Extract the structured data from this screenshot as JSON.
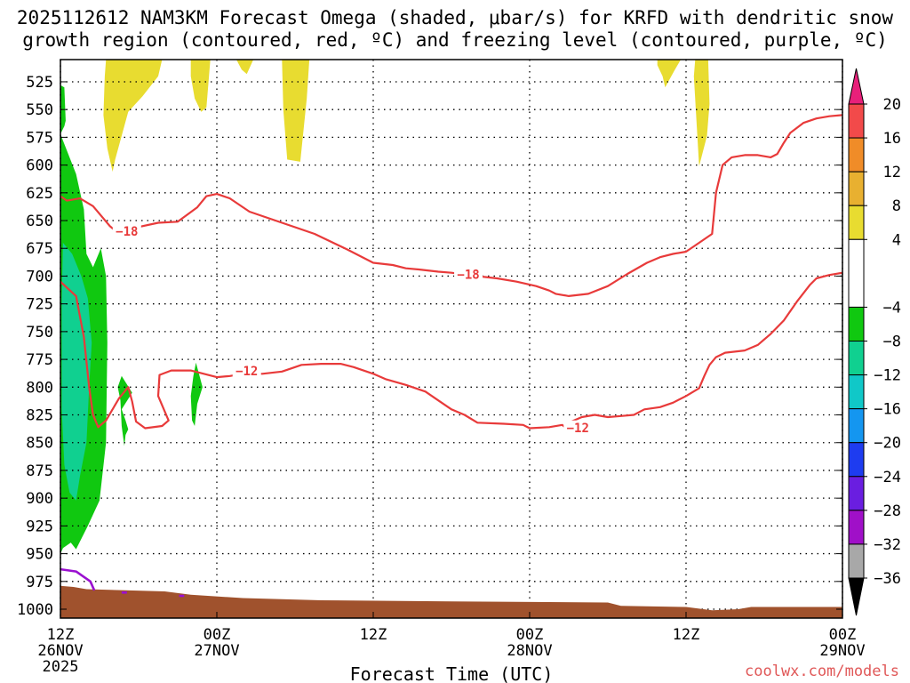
{
  "chart_data": {
    "type": "contour",
    "title_line1": "2025112612 NAM3KM Forecast Omega (shaded, μbar/s) for KRFD with dendritic snow",
    "title_line2": "growth region (contoured, red, ºC) and freezing level (contoured, purple, ºC)",
    "xlabel": "Forecast Time (UTC)",
    "credit": "coolwx.com/models",
    "y_axis": {
      "unit": "hPa",
      "ylim": [
        505,
        1008
      ],
      "ticks": [
        525,
        550,
        575,
        600,
        625,
        650,
        675,
        700,
        725,
        750,
        775,
        800,
        825,
        850,
        875,
        900,
        925,
        950,
        975,
        1000
      ],
      "grid": true
    },
    "x_axis": {
      "unit": "hours from 2025112612",
      "xlim": [
        0,
        60
      ],
      "ticks": [
        {
          "h": 0,
          "line1": "12Z",
          "line2": "26NOV",
          "line3": "2025"
        },
        {
          "h": 12,
          "line1": "00Z",
          "line2": "27NOV",
          "line3": ""
        },
        {
          "h": 24,
          "line1": "12Z",
          "line2": "",
          "line3": ""
        },
        {
          "h": 36,
          "line1": "00Z",
          "line2": "28NOV",
          "line3": ""
        },
        {
          "h": 48,
          "line1": "12Z",
          "line2": "",
          "line3": ""
        },
        {
          "h": 60,
          "line1": "00Z",
          "line2": "29NOV",
          "line3": ""
        }
      ],
      "grid": true
    },
    "colorbar": {
      "labels": [
        "20",
        "16",
        "12",
        "8",
        "4",
        "−4",
        "−8",
        "−12",
        "−16",
        "−20",
        "−24",
        "−28",
        "−32",
        "−36"
      ],
      "bands": [
        {
          "from": 16,
          "to": 20,
          "color": "#f24a4a"
        },
        {
          "from": 12,
          "to": 16,
          "color": "#f08c28"
        },
        {
          "from": 8,
          "to": 12,
          "color": "#e8b030"
        },
        {
          "from": 4,
          "to": 8,
          "color": "#e8dc30"
        },
        {
          "from": -4,
          "to": 4,
          "color": "#ffffff"
        },
        {
          "from": -8,
          "to": -4,
          "color": "#10c810"
        },
        {
          "from": -12,
          "to": -8,
          "color": "#10d090"
        },
        {
          "from": -16,
          "to": -12,
          "color": "#10c8c8"
        },
        {
          "from": -20,
          "to": -16,
          "color": "#1496f0"
        },
        {
          "from": -24,
          "to": -20,
          "color": "#1e3cf0"
        },
        {
          "from": -28,
          "to": -24,
          "color": "#6a1ee0"
        },
        {
          "from": -32,
          "to": -28,
          "color": "#a010c8"
        },
        {
          "from": -36,
          "to": -32,
          "color": "#a8a8a8"
        }
      ],
      "top_arrow_color": "#e8207a",
      "bottom_arrow_color": "#000000"
    },
    "shaded_regions": [
      {
        "value_range": [
          4,
          8
        ],
        "color": "#e8dc30",
        "polygon": [
          [
            3.5,
            505
          ],
          [
            7.8,
            505
          ],
          [
            7.5,
            520
          ],
          [
            6.3,
            538
          ],
          [
            5.2,
            552
          ],
          [
            4.2,
            595
          ],
          [
            4.0,
            606
          ],
          [
            3.6,
            585
          ],
          [
            3.3,
            555
          ],
          [
            3.4,
            520
          ]
        ]
      },
      {
        "value_range": [
          4,
          8
        ],
        "color": "#e8dc30",
        "polygon": [
          [
            10.0,
            505
          ],
          [
            11.5,
            505
          ],
          [
            11.2,
            548
          ],
          [
            10.8,
            552
          ],
          [
            10.3,
            540
          ],
          [
            10.0,
            520
          ]
        ]
      },
      {
        "value_range": [
          4,
          8
        ],
        "color": "#e8dc30",
        "polygon": [
          [
            13.5,
            505
          ],
          [
            14.8,
            505
          ],
          [
            14.3,
            518
          ],
          [
            13.9,
            514
          ]
        ]
      },
      {
        "value_range": [
          4,
          8
        ],
        "color": "#e8dc30",
        "polygon": [
          [
            17.0,
            505
          ],
          [
            19.1,
            505
          ],
          [
            18.9,
            540
          ],
          [
            18.4,
            597
          ],
          [
            17.4,
            595
          ],
          [
            17.1,
            550
          ]
        ]
      },
      {
        "value_range": [
          4,
          8
        ],
        "color": "#e8dc30",
        "polygon": [
          [
            45.8,
            505
          ],
          [
            47.6,
            505
          ],
          [
            47.1,
            515
          ],
          [
            46.4,
            530
          ],
          [
            46.2,
            520
          ],
          [
            45.8,
            510
          ]
        ]
      },
      {
        "value_range": [
          4,
          8
        ],
        "color": "#e8dc30",
        "polygon": [
          [
            48.7,
            505
          ],
          [
            49.7,
            505
          ],
          [
            49.8,
            545
          ],
          [
            49.6,
            574
          ],
          [
            49.0,
            601
          ],
          [
            48.8,
            560
          ],
          [
            48.6,
            520
          ]
        ]
      },
      {
        "value_range": [
          -8,
          -4
        ],
        "color": "#10c810",
        "polygon": [
          [
            0,
            528
          ],
          [
            0.3,
            530
          ],
          [
            0.4,
            560
          ],
          [
            0.3,
            565
          ],
          [
            0,
            572
          ]
        ]
      },
      {
        "value_range": [
          -8,
          -4
        ],
        "color": "#10c810",
        "polygon": [
          [
            0,
            572
          ],
          [
            1.2,
            608
          ],
          [
            1.8,
            640
          ],
          [
            2.0,
            680
          ],
          [
            2.5,
            692
          ],
          [
            3.1,
            675
          ],
          [
            3.5,
            700
          ],
          [
            3.6,
            760
          ],
          [
            3.5,
            850
          ],
          [
            3.0,
            902
          ],
          [
            2.1,
            925
          ],
          [
            1.2,
            946
          ],
          [
            0.8,
            940
          ],
          [
            0.2,
            945
          ],
          [
            0,
            950
          ]
        ]
      },
      {
        "value_range": [
          -8,
          -4
        ],
        "color": "#10c810",
        "polygon": [
          [
            4.7,
            790
          ],
          [
            5.5,
            805
          ],
          [
            4.7,
            820
          ],
          [
            5.0,
            830
          ],
          [
            5.2,
            838
          ],
          [
            5.0,
            843
          ],
          [
            4.9,
            853
          ],
          [
            4.7,
            835
          ],
          [
            4.6,
            812
          ],
          [
            4.4,
            800
          ]
        ]
      },
      {
        "value_range": [
          -8,
          -4
        ],
        "color": "#10c810",
        "polygon": [
          [
            10.4,
            778
          ],
          [
            10.9,
            800
          ],
          [
            10.5,
            815
          ],
          [
            10.3,
            835
          ],
          [
            10.1,
            830
          ],
          [
            10.0,
            808
          ],
          [
            10.2,
            790
          ]
        ]
      },
      {
        "value_range": [
          -12,
          -8
        ],
        "color": "#10d090",
        "polygon": [
          [
            0.2,
            670
          ],
          [
            0.9,
            680
          ],
          [
            1.6,
            700
          ],
          [
            2.1,
            720
          ],
          [
            2.4,
            760
          ],
          [
            2.2,
            800
          ],
          [
            2.0,
            850
          ],
          [
            1.5,
            880
          ],
          [
            1.2,
            902
          ],
          [
            0.7,
            895
          ],
          [
            0.3,
            870
          ],
          [
            0.1,
            820
          ],
          [
            0.1,
            720
          ]
        ]
      }
    ],
    "dgz_contours": [
      {
        "value": -18,
        "color": "#e83a3a",
        "points": [
          [
            0,
            628
          ],
          [
            0.5,
            632
          ],
          [
            1.5,
            630
          ],
          [
            2.5,
            637
          ],
          [
            3.8,
            655
          ],
          [
            4.5,
            662
          ],
          [
            5.5,
            657
          ],
          [
            7.5,
            652
          ],
          [
            9,
            651
          ],
          [
            10.5,
            638
          ],
          [
            11.2,
            628
          ],
          [
            12,
            626
          ],
          [
            13,
            630
          ],
          [
            14.5,
            642
          ],
          [
            16,
            648
          ],
          [
            17.5,
            654
          ],
          [
            19.5,
            662
          ],
          [
            22,
            676
          ],
          [
            24,
            688
          ],
          [
            25.5,
            690
          ],
          [
            26.5,
            693
          ],
          [
            27.5,
            694
          ],
          [
            29,
            696
          ],
          [
            30,
            697
          ],
          [
            32,
            700
          ],
          [
            33.5,
            702
          ],
          [
            35,
            705
          ],
          [
            36.5,
            709
          ],
          [
            37.5,
            713
          ],
          [
            38,
            716
          ],
          [
            39,
            718
          ],
          [
            40.5,
            716
          ],
          [
            42,
            709
          ],
          [
            43.5,
            698
          ],
          [
            45,
            688
          ],
          [
            46,
            683
          ],
          [
            47,
            680
          ],
          [
            48,
            678
          ],
          [
            49,
            670
          ],
          [
            50,
            662
          ],
          [
            50.3,
            625
          ],
          [
            50.8,
            600
          ],
          [
            51.5,
            593
          ],
          [
            52.5,
            591
          ],
          [
            53.5,
            591
          ],
          [
            54.5,
            593
          ],
          [
            55,
            590
          ],
          [
            55.5,
            580
          ],
          [
            56,
            571
          ],
          [
            57,
            562
          ],
          [
            58,
            558
          ],
          [
            59,
            556
          ],
          [
            60,
            555
          ]
        ],
        "label": "−18",
        "label_pts": [
          [
            5.1,
            661
          ],
          [
            31.3,
            700
          ]
        ]
      },
      {
        "value": -12,
        "color": "#e83a3a",
        "points": [
          [
            0,
            705
          ],
          [
            1.2,
            718
          ],
          [
            1.8,
            755
          ],
          [
            2.2,
            800
          ],
          [
            2.5,
            825
          ],
          [
            2.9,
            836
          ],
          [
            3.5,
            830
          ],
          [
            4.5,
            810
          ],
          [
            5.2,
            800
          ],
          [
            5.5,
            813
          ],
          [
            5.8,
            831
          ],
          [
            6.5,
            837
          ],
          [
            7.8,
            835
          ],
          [
            8.3,
            830
          ],
          [
            7.5,
            808
          ],
          [
            7.6,
            789
          ],
          [
            8.5,
            785
          ],
          [
            10,
            785
          ],
          [
            11,
            788
          ],
          [
            12,
            791
          ],
          [
            13,
            790
          ],
          [
            14,
            788
          ],
          [
            15.5,
            788
          ],
          [
            17,
            786
          ],
          [
            18,
            782
          ],
          [
            18.5,
            780
          ],
          [
            20,
            779
          ],
          [
            21.5,
            779
          ],
          [
            22.5,
            782
          ],
          [
            24,
            788
          ],
          [
            25,
            793
          ],
          [
            26.5,
            798
          ],
          [
            28,
            804
          ],
          [
            29,
            812
          ],
          [
            30,
            820
          ],
          [
            31,
            825
          ],
          [
            32,
            832
          ],
          [
            34,
            833
          ],
          [
            35.5,
            834
          ],
          [
            36,
            837
          ],
          [
            37.5,
            836
          ],
          [
            38.5,
            834
          ],
          [
            38.7,
            836
          ],
          [
            39,
            832
          ],
          [
            40,
            827
          ],
          [
            41,
            825
          ],
          [
            42,
            827
          ],
          [
            43,
            826
          ],
          [
            44,
            825
          ],
          [
            44.8,
            820
          ],
          [
            46,
            818
          ],
          [
            47,
            814
          ],
          [
            48,
            808
          ],
          [
            49,
            801
          ],
          [
            49.4,
            790
          ],
          [
            49.8,
            780
          ],
          [
            50.3,
            773
          ],
          [
            51,
            769
          ],
          [
            52.5,
            767
          ],
          [
            53.5,
            762
          ],
          [
            54.5,
            752
          ],
          [
            55.5,
            740
          ],
          [
            56.5,
            723
          ],
          [
            57.5,
            708
          ],
          [
            58,
            702
          ],
          [
            59,
            699
          ],
          [
            60,
            697
          ]
        ],
        "label": "−12",
        "label_pts": [
          [
            14.3,
            787
          ],
          [
            39.7,
            838
          ]
        ]
      }
    ],
    "freezing_contours": [
      {
        "value": 0,
        "color": "#9a10d0",
        "points": [
          [
            0,
            964
          ],
          [
            1.2,
            966
          ],
          [
            2.3,
            975
          ],
          [
            2.6,
            983
          ]
        ]
      },
      {
        "value": 0,
        "color": "#9a10d0",
        "points": [
          [
            4.7,
            985
          ],
          [
            5.1,
            985
          ]
        ]
      },
      {
        "value": 0,
        "color": "#9a10d0",
        "points": [
          [
            9.1,
            988
          ],
          [
            9.5,
            988
          ]
        ]
      }
    ],
    "terrain": {
      "color": "#a0522d",
      "profile": [
        [
          0,
          979
        ],
        [
          1,
          980
        ],
        [
          2,
          982
        ],
        [
          5,
          983
        ],
        [
          8,
          984
        ],
        [
          10,
          987
        ],
        [
          14,
          990
        ],
        [
          20,
          992
        ],
        [
          30,
          993
        ],
        [
          42,
          994
        ],
        [
          43,
          997
        ],
        [
          48,
          998
        ],
        [
          50,
          1001
        ],
        [
          52,
          1000
        ],
        [
          53,
          998
        ],
        [
          60,
          998
        ]
      ]
    }
  }
}
